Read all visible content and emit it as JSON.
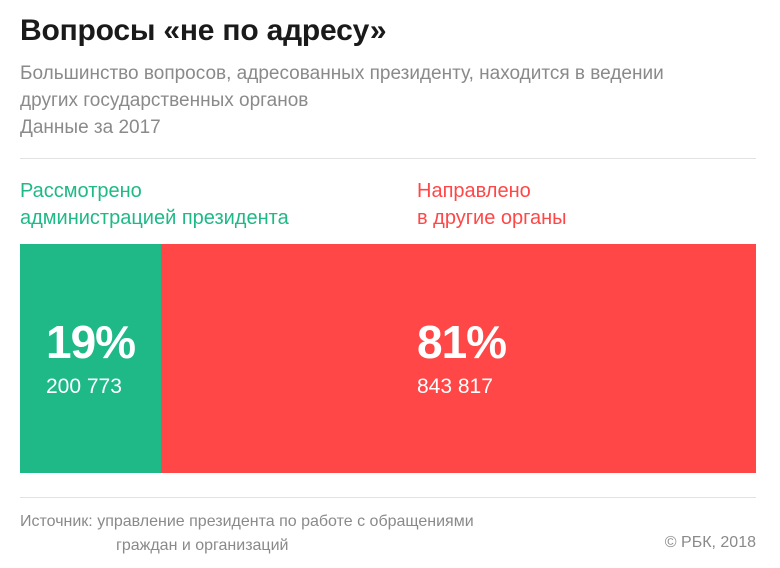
{
  "header": {
    "title": "Вопросы «не по адресу»",
    "subtitle": "Большинство вопросов, адресованных президенту, находится в ведении других государственных органов",
    "period": "Данные за 2017"
  },
  "chart_data": {
    "type": "bar",
    "orientation": "horizontal-stacked",
    "title": "Вопросы «не по адресу»",
    "subtitle": "Большинство вопросов, адресованных президенту, находится в ведении других государственных органов",
    "xlabel": "",
    "ylabel": "",
    "grid": false,
    "legend": "none",
    "series": [
      {
        "name": "Рассмотрено администрацией президента",
        "label_line1": "Рассмотрено",
        "label_line2": "администрацией президента",
        "percent": 19,
        "percent_label": "19%",
        "value": 200773,
        "value_label": "200 773",
        "color": "#1fb987",
        "label_color": "#1fb987"
      },
      {
        "name": "Направлено в другие органы",
        "label_line1": "Направлено",
        "label_line2": "в другие органы",
        "percent": 81,
        "percent_label": "81%",
        "value": 843817,
        "value_label": "843 817",
        "color": "#ff4747",
        "label_color": "#ff4747"
      }
    ]
  },
  "footer": {
    "source_line1": "Источник: управление президента по работе с обращениями",
    "source_line2": "граждан и организаций",
    "copyright": "© РБК, 2018"
  }
}
